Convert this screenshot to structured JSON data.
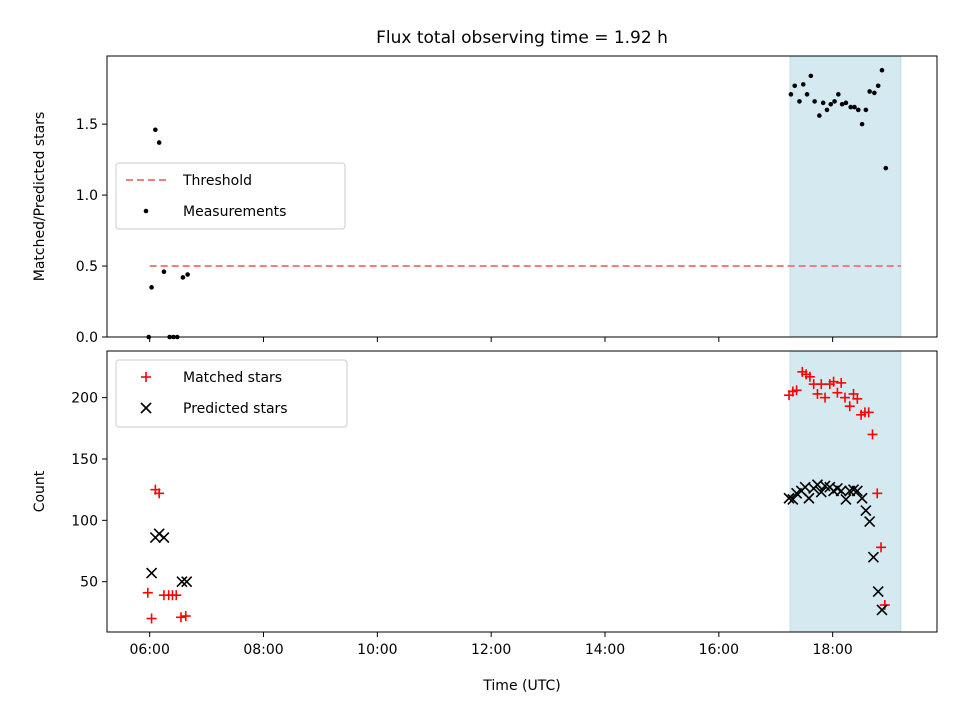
{
  "chart_data": {
    "title": "Flux total observing time = 1.92 h",
    "xlabel": "Time (UTC)",
    "x_units": "hours UTC",
    "xlim": [
      "05:15",
      "19:50"
    ],
    "xticks": [
      {
        "value": "06:00",
        "label": "06:00"
      },
      {
        "value": "08:00",
        "label": "08:00"
      },
      {
        "value": "10:00",
        "label": "10:00"
      },
      {
        "value": "12:00",
        "label": "12:00"
      },
      {
        "value": "14:00",
        "label": "14:00"
      },
      {
        "value": "16:00",
        "label": "16:00"
      },
      {
        "value": "18:00",
        "label": "18:00"
      }
    ],
    "shaded_span": {
      "start": "17:15",
      "end": "19:12",
      "color": "#d4eaf0"
    },
    "panels": [
      {
        "type": "scatter",
        "ylabel": "Matched/Predicted stars",
        "ylim": [
          0,
          1.98
        ],
        "yticks": [
          {
            "value": 0.0,
            "label": "0.0"
          },
          {
            "value": 0.5,
            "label": "0.5"
          },
          {
            "value": 1.0,
            "label": "1.0"
          },
          {
            "value": 1.5,
            "label": "1.5"
          }
        ],
        "legend": {
          "placement": "center-left"
        },
        "threshold": {
          "name": "Threshold",
          "value": 0.5,
          "x_range": [
            "06:00",
            "19:12"
          ],
          "color": "#f08080",
          "style": "dashed"
        },
        "series": [
          {
            "name": "Measurements",
            "marker": "dot",
            "color": "#000000",
            "points": [
              [
                "05:59",
                0.0
              ],
              [
                "06:02",
                0.35
              ],
              [
                "06:06",
                1.46
              ],
              [
                "06:10",
                1.37
              ],
              [
                "06:15",
                0.46
              ],
              [
                "06:21",
                0.0
              ],
              [
                "06:25",
                0.0
              ],
              [
                "06:29",
                0.0
              ],
              [
                "06:35",
                0.42
              ],
              [
                "06:40",
                0.44
              ],
              [
                "17:16",
                1.71
              ],
              [
                "17:20",
                1.77
              ],
              [
                "17:25",
                1.66
              ],
              [
                "17:29",
                1.78
              ],
              [
                "17:33",
                1.71
              ],
              [
                "17:37",
                1.84
              ],
              [
                "17:41",
                1.66
              ],
              [
                "17:46",
                1.56
              ],
              [
                "17:50",
                1.65
              ],
              [
                "17:54",
                1.6
              ],
              [
                "17:58",
                1.64
              ],
              [
                "18:02",
                1.66
              ],
              [
                "18:06",
                1.71
              ],
              [
                "18:10",
                1.64
              ],
              [
                "18:14",
                1.65
              ],
              [
                "18:19",
                1.62
              ],
              [
                "18:23",
                1.62
              ],
              [
                "18:27",
                1.6
              ],
              [
                "18:31",
                1.5
              ],
              [
                "18:35",
                1.6
              ],
              [
                "18:39",
                1.73
              ],
              [
                "18:44",
                1.72
              ],
              [
                "18:48",
                1.77
              ],
              [
                "18:52",
                1.88
              ],
              [
                "18:56",
                1.19
              ]
            ]
          }
        ]
      },
      {
        "type": "scatter",
        "ylabel": "Count",
        "ylim": [
          9,
          238
        ],
        "yticks": [
          {
            "value": 50,
            "label": "50"
          },
          {
            "value": 100,
            "label": "100"
          },
          {
            "value": 150,
            "label": "150"
          },
          {
            "value": 200,
            "label": "200"
          }
        ],
        "legend": {
          "placement": "top-left"
        },
        "series": [
          {
            "name": "Matched stars",
            "marker": "plus",
            "color": "#ff0000",
            "points": [
              [
                "05:58",
                41
              ],
              [
                "06:02",
                20
              ],
              [
                "06:06",
                125
              ],
              [
                "06:10",
                122
              ],
              [
                "06:15",
                39
              ],
              [
                "06:20",
                39
              ],
              [
                "06:24",
                39
              ],
              [
                "06:28",
                39
              ],
              [
                "06:33",
                21
              ],
              [
                "06:38",
                22
              ],
              [
                "17:14",
                202
              ],
              [
                "17:18",
                205
              ],
              [
                "17:22",
                206
              ],
              [
                "17:28",
                221
              ],
              [
                "17:32",
                219
              ],
              [
                "17:36",
                217
              ],
              [
                "17:40",
                211
              ],
              [
                "17:44",
                203
              ],
              [
                "17:48",
                211
              ],
              [
                "17:52",
                200
              ],
              [
                "17:57",
                211
              ],
              [
                "18:01",
                213
              ],
              [
                "18:05",
                204
              ],
              [
                "18:09",
                212
              ],
              [
                "18:13",
                200
              ],
              [
                "18:18",
                193
              ],
              [
                "18:22",
                203
              ],
              [
                "18:26",
                199
              ],
              [
                "18:30",
                186
              ],
              [
                "18:34",
                188
              ],
              [
                "18:38",
                188
              ],
              [
                "18:42",
                170
              ],
              [
                "18:47",
                122
              ],
              [
                "18:51",
                78
              ],
              [
                "18:55",
                31
              ]
            ]
          },
          {
            "name": "Predicted stars",
            "marker": "x",
            "color": "#000000",
            "points": [
              [
                "06:02",
                57
              ],
              [
                "06:06",
                86
              ],
              [
                "06:10",
                89
              ],
              [
                "06:15",
                86
              ],
              [
                "06:34",
                50
              ],
              [
                "06:39",
                50
              ],
              [
                "17:14",
                118
              ],
              [
                "17:18",
                117
              ],
              [
                "17:22",
                122
              ],
              [
                "17:27",
                124
              ],
              [
                "17:31",
                127
              ],
              [
                "17:35",
                118
              ],
              [
                "17:40",
                126
              ],
              [
                "17:44",
                129
              ],
              [
                "17:48",
                123
              ],
              [
                "17:52",
                128
              ],
              [
                "17:57",
                127
              ],
              [
                "18:01",
                124
              ],
              [
                "18:05",
                126
              ],
              [
                "18:09",
                124
              ],
              [
                "18:14",
                117
              ],
              [
                "18:18",
                124
              ],
              [
                "18:22",
                125
              ],
              [
                "18:26",
                124
              ],
              [
                "18:31",
                118
              ],
              [
                "18:35",
                108
              ],
              [
                "18:39",
                99
              ],
              [
                "18:43",
                70
              ],
              [
                "18:48",
                42
              ],
              [
                "18:52",
                27
              ]
            ]
          }
        ]
      }
    ]
  }
}
